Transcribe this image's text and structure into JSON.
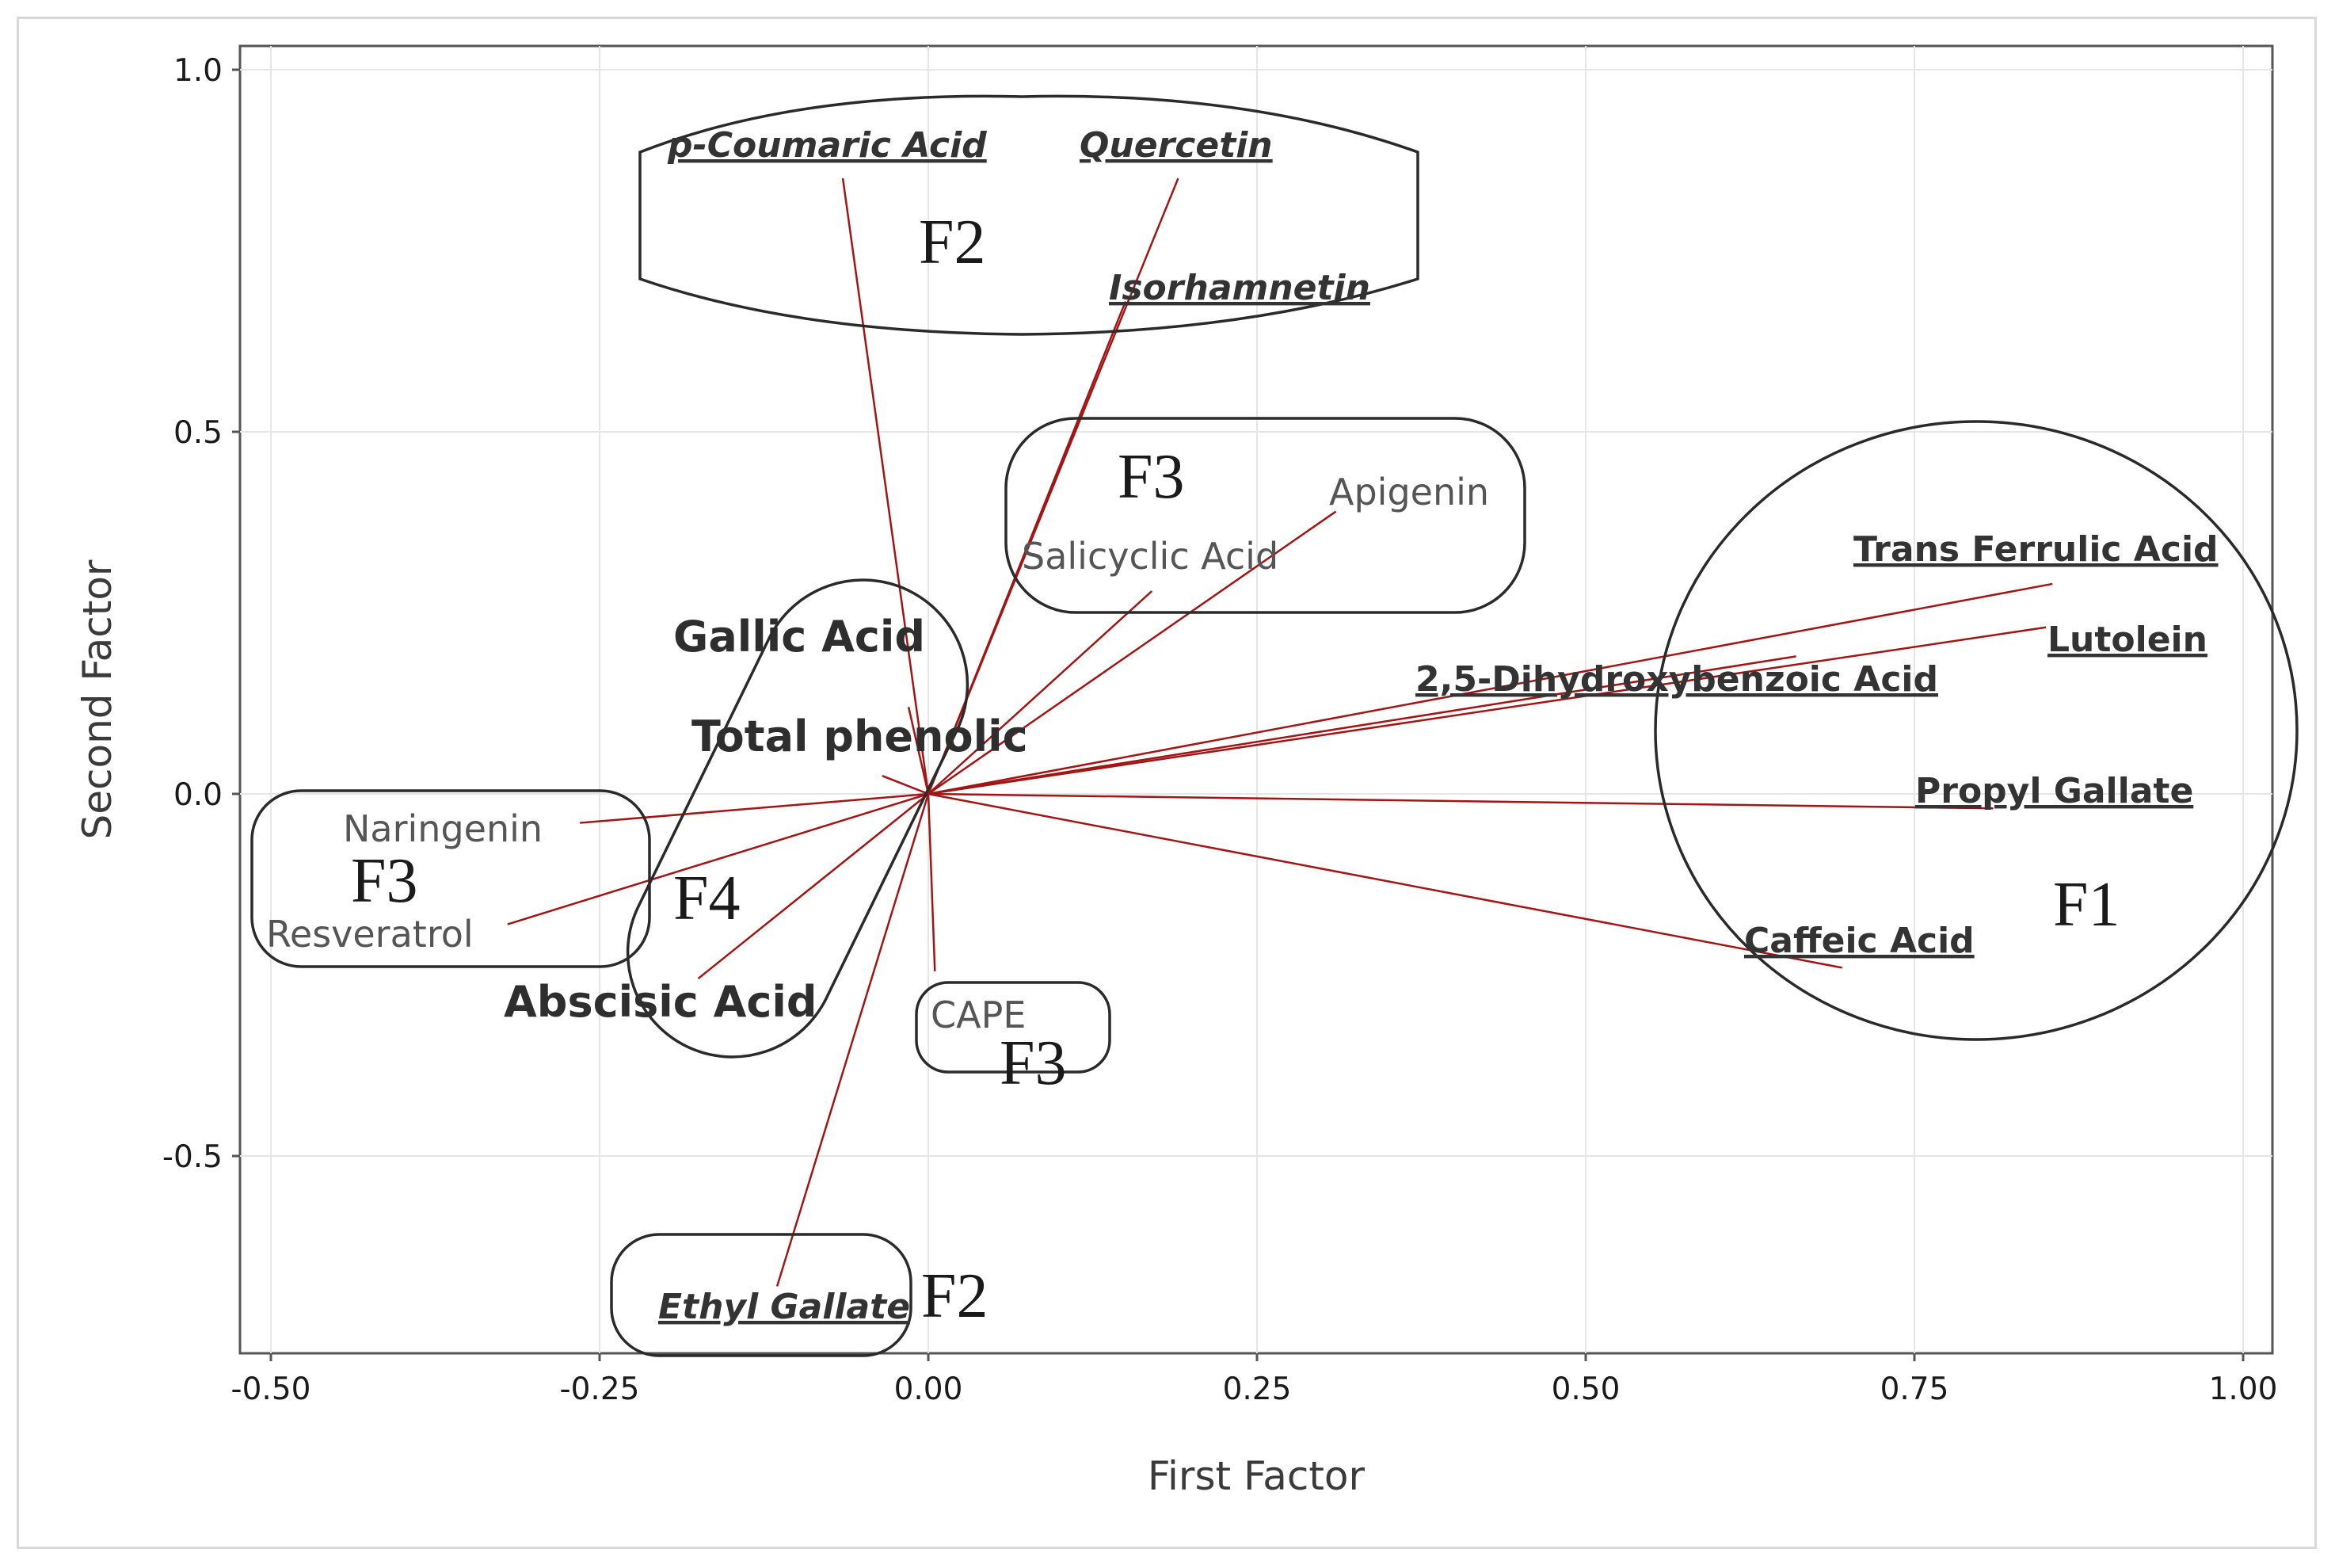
{
  "chart_data": {
    "type": "scatter",
    "subtype": "loading-plot",
    "title": "",
    "xlabel": "First Factor",
    "ylabel": "Second Factor",
    "xlim": [
      -0.54,
      1.04
    ],
    "ylim": [
      -0.78,
      1.03
    ],
    "x_ticks": [
      -0.5,
      -0.25,
      0.0,
      0.25,
      0.5,
      0.75,
      1.0
    ],
    "x_tick_labels": [
      "-0.50",
      "-0.25",
      "0.00",
      "0.25",
      "0.50",
      "0.75",
      "1.00"
    ],
    "y_ticks": [
      -0.5,
      0.0,
      0.5,
      1.0
    ],
    "y_tick_labels": [
      "-0.5",
      "0.0",
      "0.5",
      "1.0"
    ],
    "grid": true,
    "line_color": "#a31515",
    "loadings": [
      {
        "name": "p-Coumaric Acid",
        "x": -0.065,
        "y": 0.85,
        "style": "italic"
      },
      {
        "name": "Quercetin",
        "x": 0.19,
        "y": 0.85,
        "style": "italic"
      },
      {
        "name": "Isorhamnetin",
        "x": 0.15,
        "y": 0.68,
        "style": "italic"
      },
      {
        "name": "Apigenin",
        "x": 0.31,
        "y": 0.39,
        "style": "light"
      },
      {
        "name": "Salicyclic Acid",
        "x": 0.17,
        "y": 0.28,
        "style": "light"
      },
      {
        "name": "Trans Ferrulic Acid",
        "x": 0.855,
        "y": 0.29,
        "style": "bold"
      },
      {
        "name": "Lutolein",
        "x": 0.85,
        "y": 0.23,
        "style": "bold"
      },
      {
        "name": "2,5-Dihydroxybenzoic Acid",
        "x": 0.66,
        "y": 0.19,
        "style": "bold"
      },
      {
        "name": "Propyl Gallate",
        "x": 0.81,
        "y": -0.02,
        "style": "bold"
      },
      {
        "name": "Caffeic Acid",
        "x": 0.695,
        "y": -0.24,
        "style": "bold"
      },
      {
        "name": "Gallic Acid",
        "x": -0.015,
        "y": 0.12,
        "style": "bold-big"
      },
      {
        "name": "Total phenolic",
        "x": -0.035,
        "y": 0.025,
        "style": "bold-big"
      },
      {
        "name": "Naringenin",
        "x": -0.265,
        "y": -0.04,
        "style": "light"
      },
      {
        "name": "Resveratrol",
        "x": -0.32,
        "y": -0.18,
        "style": "light"
      },
      {
        "name": "Abscisic Acid",
        "x": -0.175,
        "y": -0.255,
        "style": "bold-big"
      },
      {
        "name": "CAPE",
        "x": 0.005,
        "y": -0.245,
        "style": "light"
      },
      {
        "name": "Ethyl Gallate",
        "x": -0.115,
        "y": -0.68,
        "style": "italic"
      }
    ],
    "groups": [
      {
        "label": "F2",
        "shape": "rounded-rect",
        "members": [
          "p-Coumaric Acid",
          "Quercetin",
          "Isorhamnetin"
        ]
      },
      {
        "label": "F3",
        "shape": "rounded-rect",
        "members": [
          "Apigenin",
          "Salicyclic Acid"
        ]
      },
      {
        "label": "F1",
        "shape": "ellipse",
        "members": [
          "Trans Ferrulic Acid",
          "Lutolein",
          "2,5-Dihydroxybenzoic Acid",
          "Propyl Gallate",
          "Caffeic Acid"
        ]
      },
      {
        "label": "F4",
        "shape": "rounded-rect",
        "members": [
          "Gallic Acid",
          "Total phenolic",
          "Abscisic Acid"
        ]
      },
      {
        "label": "F3",
        "shape": "rounded-rect",
        "members": [
          "Naringenin",
          "Resveratrol"
        ]
      },
      {
        "label": "F3",
        "shape": "rounded-rect",
        "members": [
          "CAPE"
        ]
      },
      {
        "label": "F2",
        "shape": "rounded-rect",
        "members": [
          "Ethyl Gallate"
        ]
      }
    ]
  }
}
